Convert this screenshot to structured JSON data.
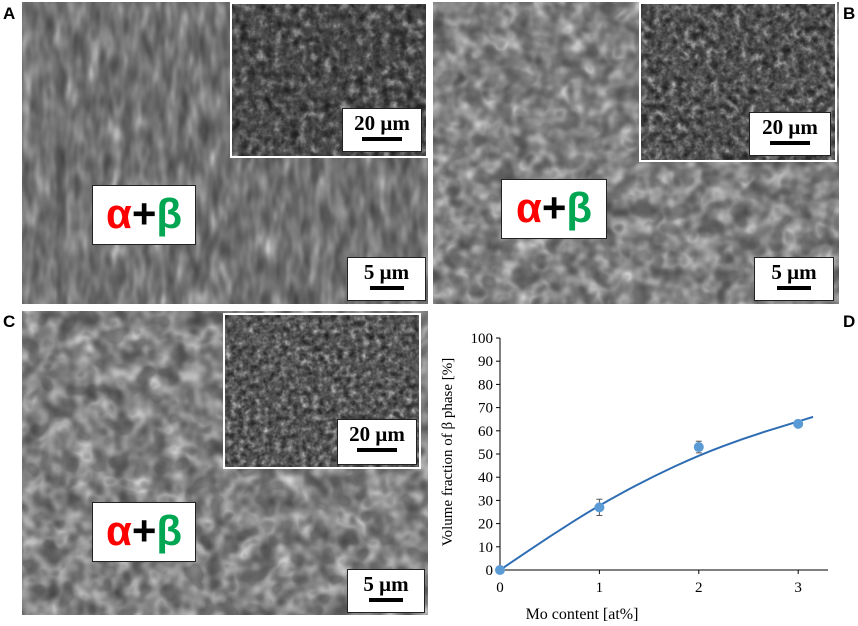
{
  "panels": [
    {
      "letter": "A",
      "phase": {
        "alpha": "α",
        "plus": "+",
        "beta": "β"
      },
      "scale_main": "5 μm",
      "scale_inset": "20 μm"
    },
    {
      "letter": "B",
      "phase": {
        "alpha": "α",
        "plus": "+",
        "beta": "β"
      },
      "scale_main": "5 μm",
      "scale_inset": "20 μm"
    },
    {
      "letter": "C",
      "phase": {
        "alpha": "α",
        "plus": "+",
        "beta": "β"
      },
      "scale_main": "5 μm",
      "scale_inset": "20 μm"
    },
    {
      "letter": "D"
    }
  ],
  "colors": {
    "alpha": "#ff0000",
    "beta": "#00a651",
    "curve": "#2e6db4",
    "points": "#5b9bd5"
  },
  "chart_data": {
    "type": "scatter",
    "xlabel": "Mo content [at%]",
    "ylabel": "Volume fraction of β phase [%]",
    "xlim": [
      0,
      3.3
    ],
    "ylim": [
      0,
      100
    ],
    "x_ticks": [
      "0",
      "1",
      "2",
      "3"
    ],
    "y_ticks": [
      "0",
      "10",
      "20",
      "30",
      "40",
      "50",
      "60",
      "70",
      "80",
      "90",
      "100"
    ],
    "series": [
      {
        "kind": "points",
        "x": [
          0,
          1,
          2,
          3
        ],
        "y": [
          0,
          27,
          53,
          63
        ],
        "yerr": [
          0,
          3.5,
          2.5,
          1
        ]
      },
      {
        "kind": "fit",
        "x": [
          0,
          0.5,
          1,
          1.5,
          2,
          2.5,
          3,
          3.15
        ],
        "y": [
          0,
          14.5,
          28,
          39.5,
          49.5,
          57.5,
          64,
          66
        ]
      }
    ],
    "grid": false,
    "legend": "none"
  }
}
